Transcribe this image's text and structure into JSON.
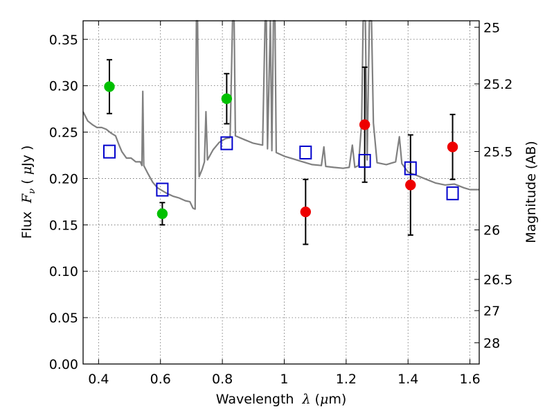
{
  "chart_data": {
    "type": "scatter",
    "xlabel": {
      "pre": "Wavelength",
      "sym": "λ",
      "open": " (",
      "unit_sym": "μ",
      "unit": "m)"
    },
    "ylabel": {
      "pre": "Flux",
      "sym": "F",
      "sub": "ν",
      "open": " ( ",
      "unit_sym": "μ",
      "unit": "Jy )"
    },
    "y2label": "Magnitude (AB)",
    "xlim": [
      0.35,
      1.63
    ],
    "ylim": [
      0.0,
      0.37
    ],
    "grid": true,
    "x_ticks": [
      {
        "value": 0.4,
        "label": "0.4"
      },
      {
        "value": 0.6,
        "label": "0.6"
      },
      {
        "value": 0.8,
        "label": "0.8"
      },
      {
        "value": 1.0,
        "label": "1"
      },
      {
        "value": 1.2,
        "label": "1.2"
      },
      {
        "value": 1.4,
        "label": "1.4"
      },
      {
        "value": 1.6,
        "label": "1.6"
      }
    ],
    "y_ticks": [
      {
        "value": 0.0,
        "label": "0.00"
      },
      {
        "value": 0.05,
        "label": "0.05"
      },
      {
        "value": 0.1,
        "label": "0.10"
      },
      {
        "value": 0.15,
        "label": "0.15"
      },
      {
        "value": 0.2,
        "label": "0.20"
      },
      {
        "value": 0.25,
        "label": "0.25"
      },
      {
        "value": 0.3,
        "label": "0.30"
      },
      {
        "value": 0.35,
        "label": "0.35"
      }
    ],
    "y2_ticks": [
      {
        "mag": 25,
        "label": "25"
      },
      {
        "mag": 25.2,
        "label": "25.2"
      },
      {
        "mag": 25.5,
        "label": "25.5"
      },
      {
        "mag": 26,
        "label": "26"
      },
      {
        "mag": 26.5,
        "label": "26.5"
      },
      {
        "mag": 27,
        "label": "27"
      },
      {
        "mag": 28,
        "label": "28"
      }
    ],
    "colors": {
      "green": "#00c000",
      "red": "#ee0000",
      "blue": "#0000cc",
      "spectrum": "#808080",
      "errorbar": "#000000",
      "grid": "#666666"
    },
    "green_points": [
      {
        "x": 0.435,
        "y": 0.299,
        "yerr": 0.029
      },
      {
        "x": 0.606,
        "y": 0.162,
        "yerr": 0.012
      },
      {
        "x": 0.814,
        "y": 0.286,
        "yerr": 0.027
      }
    ],
    "red_points": [
      {
        "x": 1.069,
        "y": 0.164,
        "yerr": 0.035
      },
      {
        "x": 1.26,
        "y": 0.258,
        "yerr": 0.062
      },
      {
        "x": 1.408,
        "y": 0.193,
        "yerr": 0.054
      },
      {
        "x": 1.544,
        "y": 0.234,
        "yerr": 0.035
      }
    ],
    "model_points": [
      {
        "x": 0.435,
        "y": 0.229
      },
      {
        "x": 0.606,
        "y": 0.188
      },
      {
        "x": 0.814,
        "y": 0.238
      },
      {
        "x": 1.069,
        "y": 0.228
      },
      {
        "x": 1.26,
        "y": 0.219
      },
      {
        "x": 1.408,
        "y": 0.211
      },
      {
        "x": 1.544,
        "y": 0.184
      }
    ],
    "spectrum": [
      [
        0.35,
        0.272
      ],
      [
        0.365,
        0.262
      ],
      [
        0.38,
        0.258
      ],
      [
        0.395,
        0.255
      ],
      [
        0.41,
        0.255
      ],
      [
        0.425,
        0.253
      ],
      [
        0.44,
        0.249
      ],
      [
        0.455,
        0.246
      ],
      [
        0.465,
        0.237
      ],
      [
        0.475,
        0.229
      ],
      [
        0.49,
        0.222
      ],
      [
        0.505,
        0.222
      ],
      [
        0.52,
        0.218
      ],
      [
        0.535,
        0.218
      ],
      [
        0.54,
        0.214
      ],
      [
        0.543,
        0.294
      ],
      [
        0.546,
        0.214
      ],
      [
        0.56,
        0.205
      ],
      [
        0.575,
        0.196
      ],
      [
        0.59,
        0.19
      ],
      [
        0.605,
        0.187
      ],
      [
        0.62,
        0.184
      ],
      [
        0.64,
        0.181
      ],
      [
        0.66,
        0.179
      ],
      [
        0.68,
        0.176
      ],
      [
        0.695,
        0.175
      ],
      [
        0.705,
        0.168
      ],
      [
        0.712,
        0.167
      ],
      [
        0.716,
        0.37
      ],
      [
        0.72,
        0.37
      ],
      [
        0.725,
        0.202
      ],
      [
        0.735,
        0.21
      ],
      [
        0.742,
        0.218
      ],
      [
        0.747,
        0.272
      ],
      [
        0.752,
        0.22
      ],
      [
        0.77,
        0.231
      ],
      [
        0.79,
        0.239
      ],
      [
        0.81,
        0.243
      ],
      [
        0.825,
        0.244
      ],
      [
        0.833,
        0.37
      ],
      [
        0.838,
        0.37
      ],
      [
        0.842,
        0.246
      ],
      [
        0.87,
        0.242
      ],
      [
        0.9,
        0.238
      ],
      [
        0.93,
        0.236
      ],
      [
        0.938,
        0.37
      ],
      [
        0.942,
        0.37
      ],
      [
        0.946,
        0.232
      ],
      [
        0.955,
        0.37
      ],
      [
        0.96,
        0.23
      ],
      [
        0.965,
        0.37
      ],
      [
        0.97,
        0.37
      ],
      [
        0.974,
        0.228
      ],
      [
        1.0,
        0.224
      ],
      [
        1.03,
        0.221
      ],
      [
        1.06,
        0.218
      ],
      [
        1.09,
        0.215
      ],
      [
        1.12,
        0.214
      ],
      [
        1.128,
        0.234
      ],
      [
        1.134,
        0.213
      ],
      [
        1.16,
        0.212
      ],
      [
        1.19,
        0.211
      ],
      [
        1.21,
        0.212
      ],
      [
        1.22,
        0.236
      ],
      [
        1.228,
        0.212
      ],
      [
        1.24,
        0.214
      ],
      [
        1.25,
        0.26
      ],
      [
        1.255,
        0.37
      ],
      [
        1.262,
        0.37
      ],
      [
        1.268,
        0.22
      ],
      [
        1.275,
        0.37
      ],
      [
        1.282,
        0.37
      ],
      [
        1.288,
        0.26
      ],
      [
        1.3,
        0.217
      ],
      [
        1.33,
        0.215
      ],
      [
        1.36,
        0.218
      ],
      [
        1.372,
        0.245
      ],
      [
        1.38,
        0.216
      ],
      [
        1.4,
        0.207
      ],
      [
        1.43,
        0.203
      ],
      [
        1.46,
        0.199
      ],
      [
        1.49,
        0.195
      ],
      [
        1.52,
        0.193
      ],
      [
        1.55,
        0.194
      ],
      [
        1.58,
        0.19
      ],
      [
        1.6,
        0.188
      ],
      [
        1.63,
        0.188
      ]
    ]
  }
}
